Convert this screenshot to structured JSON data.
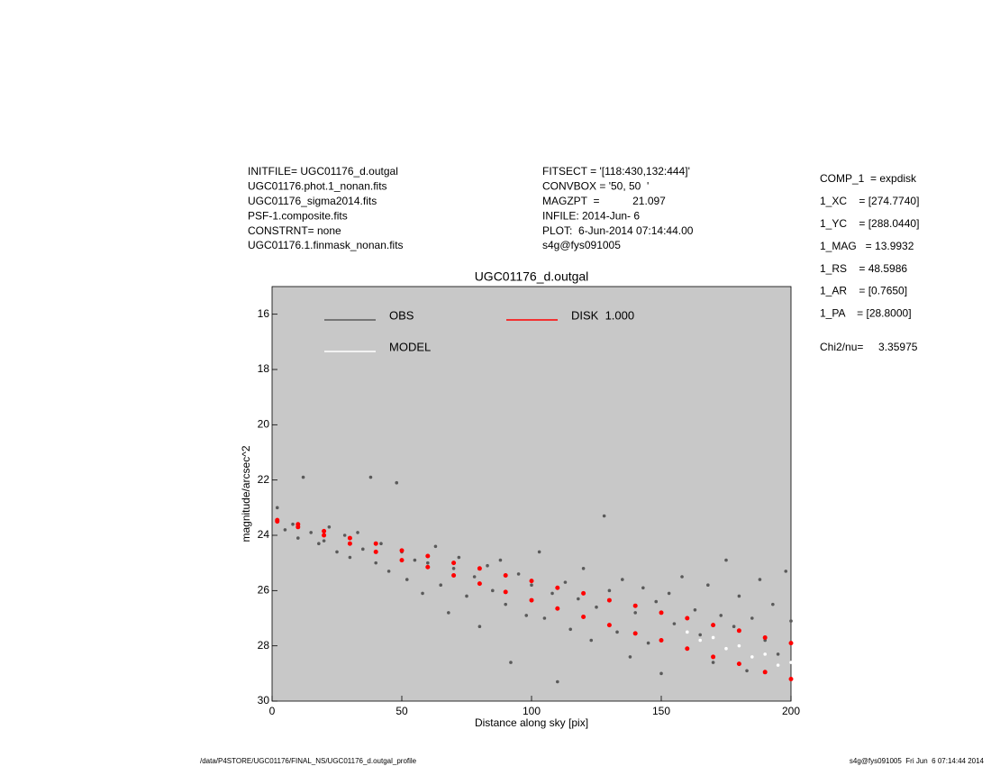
{
  "header": {
    "left": [
      "INITFILE= UGC01176_d.outgal",
      "UGC01176.phot.1_nonan.fits",
      "UGC01176_sigma2014.fits",
      "PSF-1.composite.fits",
      "CONSTRNT= none",
      "UGC01176.1.finmask_nonan.fits"
    ],
    "middle": [
      "FITSECT = '[118:430,132:444]'",
      "CONVBOX = '50, 50  '",
      "MAGZPT  =           21.097",
      "INFILE: 2014-Jun- 6",
      "PLOT:  6-Jun-2014 07:14:44.00",
      "s4g@fys091005"
    ],
    "right": [
      "COMP_1  = expdisk",
      "1_XC    = [274.7740]",
      "1_YC    = [288.0440]",
      "1_MAG   = 13.9932",
      "1_RS    = 48.5986",
      "1_AR    = [0.7650]",
      "1_PA    = [28.8000]"
    ],
    "chi2": "Chi2/nu=     3.35975"
  },
  "footer": {
    "left": "/data/P4STORE/UGC01176/FINAL_NS/UGC01176_d.outgal_profile",
    "right": "s4g@fys091005  Fri Jun  6 07:14:44 2014"
  },
  "chart_data": {
    "type": "scatter",
    "title": "UGC01176_d.outgal",
    "x_label": "Distance along sky [pix]",
    "y_label": "magnitude/arcsec^2",
    "xlim": [
      0,
      200
    ],
    "xticks": [
      0,
      50,
      100,
      150,
      200
    ],
    "ylim": [
      30,
      15
    ],
    "yticks": [
      16,
      18,
      20,
      22,
      24,
      26,
      28,
      30
    ],
    "background": "#c8c8c8",
    "series": [
      {
        "name": "OBS",
        "color": "#5a5a5a",
        "x": [
          2,
          5,
          8,
          10,
          12,
          15,
          18,
          20,
          22,
          25,
          28,
          30,
          33,
          35,
          38,
          40,
          42,
          45,
          48,
          50,
          52,
          55,
          58,
          60,
          63,
          65,
          68,
          70,
          72,
          75,
          78,
          80,
          83,
          85,
          88,
          90,
          92,
          95,
          98,
          100,
          103,
          105,
          108,
          110,
          113,
          115,
          118,
          120,
          123,
          125,
          128,
          130,
          133,
          135,
          138,
          140,
          143,
          145,
          148,
          150,
          153,
          155,
          158,
          160,
          163,
          165,
          168,
          170,
          173,
          175,
          178,
          180,
          183,
          185,
          188,
          190,
          193,
          195,
          198,
          200
        ],
        "values": [
          23.0,
          23.8,
          23.6,
          24.1,
          21.9,
          23.9,
          24.3,
          24.2,
          23.7,
          24.6,
          24.0,
          24.8,
          23.9,
          24.5,
          21.9,
          25.0,
          24.3,
          25.3,
          22.1,
          24.6,
          25.6,
          24.9,
          26.1,
          25.0,
          24.4,
          25.8,
          26.8,
          25.2,
          24.8,
          26.2,
          25.5,
          27.3,
          25.1,
          26.0,
          24.9,
          26.5,
          28.6,
          25.4,
          26.9,
          25.8,
          24.6,
          27.0,
          26.1,
          29.3,
          25.7,
          27.4,
          26.3,
          25.2,
          27.8,
          26.6,
          23.3,
          26.0,
          27.5,
          25.6,
          28.4,
          26.8,
          25.9,
          27.9,
          26.4,
          29.0,
          26.1,
          27.2,
          25.5,
          28.1,
          26.7,
          27.6,
          25.8,
          28.6,
          26.9,
          24.9,
          27.3,
          26.2,
          28.9,
          27.0,
          25.6,
          27.8,
          26.5,
          28.3,
          25.3,
          27.1
        ]
      },
      {
        "name": "MODEL",
        "color": "#ffffff",
        "x": [
          160,
          165,
          170,
          175,
          180,
          185,
          190,
          195,
          200
        ],
        "values": [
          27.5,
          27.8,
          27.7,
          28.1,
          28.0,
          28.4,
          28.3,
          28.7,
          28.6
        ]
      },
      {
        "name": "DISK  1.000",
        "color": "#ff0000",
        "x": [
          2,
          10,
          20,
          30,
          40,
          50,
          60,
          70,
          80,
          90,
          100,
          110,
          120,
          130,
          140,
          150,
          160,
          170,
          180,
          190,
          200,
          2,
          10,
          20,
          30,
          40,
          50,
          60,
          70,
          80,
          90,
          100,
          110,
          120,
          130,
          140,
          150,
          160,
          170,
          180,
          190,
          200
        ],
        "values": [
          23.45,
          23.6,
          23.85,
          24.1,
          24.3,
          24.55,
          24.75,
          25.0,
          25.2,
          25.45,
          25.65,
          25.9,
          26.1,
          26.35,
          26.55,
          26.8,
          27.0,
          27.25,
          27.45,
          27.7,
          27.9,
          23.5,
          23.7,
          24.0,
          24.3,
          24.6,
          24.9,
          25.15,
          25.45,
          25.75,
          26.05,
          26.35,
          26.65,
          26.95,
          27.25,
          27.55,
          27.8,
          28.1,
          28.4,
          28.65,
          28.95,
          29.2
        ]
      }
    ]
  }
}
